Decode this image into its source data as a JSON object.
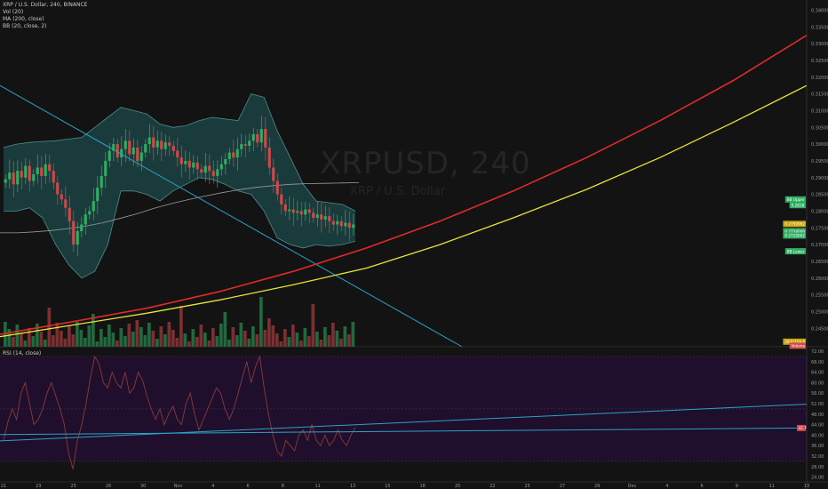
{
  "legend": {
    "symbol_line": "XRP / U.S. Dollar, 240, BINANCE",
    "vol_line": "Vol (20)",
    "ma_line": "MA (200, close)",
    "bb_line": "BB (20, close, 2)"
  },
  "rsi_legend": "RSI (14, close)",
  "watermark": {
    "symbol": "XRPUSD, 240",
    "name": "XRP / U.S. Dollar"
  },
  "colors": {
    "background": "#131313",
    "bull": "#2fae62",
    "bear": "#d2484a",
    "bb_fill": "#1e4a4a",
    "bb_line": "#4f8e8c",
    "ma": "#9b9b9b",
    "red_curve": "#e12a2a",
    "yellow_curve": "#e9e33b",
    "trendline": "#2aa3c6",
    "rsi_band": "#1f0f2c",
    "rsi_line": "#8a3a3a"
  },
  "chart_data": [
    {
      "type": "line",
      "name": "price",
      "price_axis_ticks": [
        "0.3400000",
        "0.3350000",
        "0.3300000",
        "0.3250000",
        "0.3200000",
        "0.3150000",
        "0.3100000",
        "0.3050000",
        "0.3000000",
        "0.2950000",
        "0.2900000",
        "0.2850000",
        "0.2800000",
        "0.2750000",
        "0.2700000",
        "0.2650000",
        "0.2600000",
        "0.2550000",
        "0.2500000",
        "0.2450000",
        "0.2400000"
      ],
      "ylim": [
        0.2395,
        0.3425
      ],
      "date_axis_ticks": [
        "21",
        "23",
        "25",
        "28",
        "30",
        "Nov",
        "4",
        "6",
        "8",
        "11",
        "13",
        "15",
        "18",
        "20",
        "22",
        "25",
        "27",
        "29",
        "Dec",
        "4",
        "6",
        "9",
        "11",
        "13"
      ],
      "price_markers": [
        {
          "label": "0.2818",
          "value": 0.2818,
          "color": "#2fae62"
        },
        {
          "label": "BB Upper",
          "value": 0.2835,
          "color": "#2fae62"
        },
        {
          "label": "0.2759962",
          "value": 0.2762,
          "color": "#c8a20a"
        },
        {
          "label": "0.2734000",
          "value": 0.274,
          "color": "#2fae62"
        },
        {
          "label": "0.2725002",
          "value": 0.2727,
          "color": "#2fae62"
        },
        {
          "label": "BB Lower",
          "value": 0.268,
          "color": "#2fae62"
        },
        {
          "label": "2932154.6",
          "value": 0.241,
          "color": "#c8a20a"
        },
        {
          "label": "Volume",
          "value": 0.2398,
          "color": "#d2484a"
        }
      ],
      "rsi_axis_ticks": [
        "72.00",
        "68.00",
        "64.00",
        "60.00",
        "56.00",
        "52.00",
        "48.00",
        "44.00",
        "40.00",
        "36.00",
        "32.00",
        "28.00",
        "24.00"
      ],
      "rsi_ylim": [
        22.5,
        73
      ],
      "rsi_marker": {
        "label": "42.7",
        "value": 42.7
      },
      "rsi_band": [
        30,
        70
      ],
      "candles_close": [
        0.2895,
        0.2915,
        0.288,
        0.292,
        0.29,
        0.2935,
        0.289,
        0.291,
        0.293,
        0.2905,
        0.294,
        0.292,
        0.2885,
        0.285,
        0.2835,
        0.281,
        0.277,
        0.27,
        0.274,
        0.276,
        0.279,
        0.28,
        0.283,
        0.287,
        0.2905,
        0.295,
        0.298,
        0.3,
        0.296,
        0.2985,
        0.301,
        0.297,
        0.299,
        0.295,
        0.2975,
        0.3,
        0.302,
        0.299,
        0.301,
        0.2985,
        0.3005,
        0.2995,
        0.298,
        0.296,
        0.294,
        0.295,
        0.293,
        0.2945,
        0.2925,
        0.2915,
        0.2935,
        0.292,
        0.2905,
        0.2925,
        0.294,
        0.2955,
        0.2975,
        0.296,
        0.2985,
        0.3,
        0.2995,
        0.301,
        0.303,
        0.3005,
        0.3045,
        0.299,
        0.293,
        0.289,
        0.285,
        0.282,
        0.28,
        0.2805,
        0.2795,
        0.28,
        0.279,
        0.2805,
        0.2795,
        0.278,
        0.279,
        0.2775,
        0.2785,
        0.277,
        0.276,
        0.277,
        0.2755,
        0.2765,
        0.275,
        0.276
      ],
      "bb_upper": [
        0.299,
        0.3,
        0.3005,
        0.3008,
        0.301,
        0.3015,
        0.302,
        0.305,
        0.308,
        0.311,
        0.31,
        0.309,
        0.306,
        0.305,
        0.3055,
        0.307,
        0.308,
        0.3075,
        0.307,
        0.315,
        0.314,
        0.304,
        0.296,
        0.288,
        0.283,
        0.2825,
        0.282,
        0.28
      ],
      "bb_lower": [
        0.28,
        0.28,
        0.281,
        0.278,
        0.27,
        0.264,
        0.26,
        0.262,
        0.27,
        0.286,
        0.286,
        0.285,
        0.283,
        0.286,
        0.288,
        0.29,
        0.2895,
        0.288,
        0.286,
        0.285,
        0.28,
        0.272,
        0.27,
        0.269,
        0.27,
        0.2695,
        0.27,
        0.271
      ],
      "ma200": [
        0.2735,
        0.2735,
        0.2738,
        0.2742,
        0.2748,
        0.2755,
        0.2765,
        0.2778,
        0.2792,
        0.2808,
        0.2822,
        0.2834,
        0.2845,
        0.2855,
        0.2864,
        0.2871,
        0.2876,
        0.288,
        0.2882,
        0.2883,
        0.2884,
        0.2885
      ],
      "red_curve": [
        0.2432,
        0.247,
        0.251,
        0.256,
        0.262,
        0.269,
        0.277,
        0.286,
        0.296,
        0.307,
        0.319,
        0.3325
      ],
      "yellow_curve": [
        0.2425,
        0.246,
        0.2495,
        0.2535,
        0.258,
        0.263,
        0.27,
        0.278,
        0.2865,
        0.296,
        0.3065,
        0.3175
      ],
      "rsi": [
        38,
        45,
        50,
        46,
        56,
        60,
        52,
        44,
        46,
        50,
        56,
        60,
        55,
        50,
        44,
        33,
        27,
        38,
        44,
        52,
        62,
        70,
        67,
        60,
        58,
        64,
        60,
        58,
        64,
        56,
        58,
        64,
        61,
        55,
        50,
        46,
        50,
        44,
        48,
        51,
        46,
        44,
        52,
        56,
        48,
        42,
        46,
        50,
        54,
        58,
        56,
        50,
        46,
        50,
        56,
        62,
        68,
        60,
        66,
        70,
        58,
        48,
        40,
        34,
        32,
        38,
        36,
        34,
        40,
        42,
        38,
        44,
        38,
        36,
        40,
        36,
        38,
        42,
        38,
        36,
        40,
        43
      ]
    }
  ]
}
